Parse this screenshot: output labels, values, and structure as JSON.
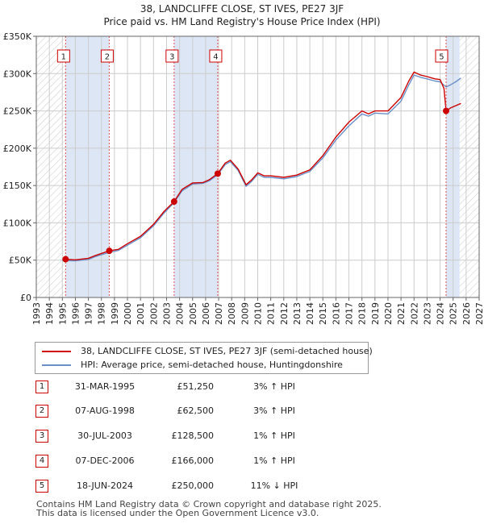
{
  "header": {
    "title": "38, LANDCLIFFE CLOSE, ST IVES, PE27 3JF",
    "subtitle": "Price paid vs. HM Land Registry's House Price Index (HPI)"
  },
  "colors": {
    "property": "#cc0000",
    "hpi": "#6a8fc8",
    "shade": "#dde6f5",
    "grid": "#cccccc",
    "marker_line": "#e05050"
  },
  "chart_data": {
    "type": "line",
    "xlim": [
      1993,
      2027
    ],
    "ylim": [
      0,
      350000
    ],
    "x_ticks": [
      "1993",
      "1994",
      "1995",
      "1996",
      "1997",
      "1998",
      "1999",
      "2000",
      "2001",
      "2002",
      "2003",
      "2004",
      "2005",
      "2006",
      "2007",
      "2008",
      "2009",
      "2010",
      "2011",
      "2012",
      "2013",
      "2014",
      "2015",
      "2016",
      "2017",
      "2018",
      "2019",
      "2020",
      "2021",
      "2022",
      "2023",
      "2024",
      "2025",
      "2026",
      "2027"
    ],
    "y_ticks": [
      {
        "value": 0,
        "label": "£0"
      },
      {
        "value": 50000,
        "label": "£50K"
      },
      {
        "value": 100000,
        "label": "£100K"
      },
      {
        "value": 150000,
        "label": "£150K"
      },
      {
        "value": 200000,
        "label": "£200K"
      },
      {
        "value": 250000,
        "label": "£250K"
      },
      {
        "value": 300000,
        "label": "£300K"
      },
      {
        "value": 350000,
        "label": "£350K"
      }
    ],
    "shaded_ranges": [
      [
        1995.25,
        1998.6
      ],
      [
        2003.58,
        2006.93
      ],
      [
        2024.46,
        2025.5
      ]
    ],
    "hatched_ranges": [
      [
        1993,
        1995.25
      ],
      [
        2025.5,
        2027
      ]
    ],
    "series": [
      {
        "name": "38, LANDCLIFFE CLOSE, ST IVES, PE27 3JF (semi-detached house)",
        "color": "#cc0000",
        "points": [
          [
            1995.25,
            51250
          ],
          [
            1996.0,
            50500
          ],
          [
            1997.0,
            52500
          ],
          [
            1997.5,
            56000
          ],
          [
            1998.6,
            62500
          ],
          [
            1999.3,
            64500
          ],
          [
            2000.0,
            72000
          ],
          [
            2001.0,
            82000
          ],
          [
            2002.0,
            98000
          ],
          [
            2002.8,
            115000
          ],
          [
            2003.58,
            128500
          ],
          [
            2004.2,
            145000
          ],
          [
            2005.0,
            153500
          ],
          [
            2005.8,
            154000
          ],
          [
            2006.3,
            158000
          ],
          [
            2006.93,
            166000
          ],
          [
            2007.5,
            180000
          ],
          [
            2007.9,
            184000
          ],
          [
            2008.5,
            172000
          ],
          [
            2009.1,
            151000
          ],
          [
            2009.5,
            157000
          ],
          [
            2010.0,
            167000
          ],
          [
            2010.5,
            163000
          ],
          [
            2011.0,
            163000
          ],
          [
            2012.0,
            161000
          ],
          [
            2013.0,
            164000
          ],
          [
            2014.0,
            171000
          ],
          [
            2015.0,
            190000
          ],
          [
            2016.0,
            215000
          ],
          [
            2017.0,
            235000
          ],
          [
            2018.0,
            250000
          ],
          [
            2018.5,
            246000
          ],
          [
            2019.0,
            250000
          ],
          [
            2020.0,
            250000
          ],
          [
            2021.0,
            268000
          ],
          [
            2021.6,
            290000
          ],
          [
            2022.0,
            302000
          ],
          [
            2022.5,
            298000
          ],
          [
            2023.0,
            296000
          ],
          [
            2023.6,
            293000
          ],
          [
            2024.0,
            292000
          ],
          [
            2024.3,
            280000
          ],
          [
            2024.46,
            250000
          ],
          [
            2024.8,
            254000
          ],
          [
            2025.2,
            257000
          ],
          [
            2025.6,
            260000
          ]
        ]
      },
      {
        "name": "HPI: Average price, semi-detached house, Huntingdonshire",
        "color": "#6a8fc8",
        "points": [
          [
            1995.0,
            49500
          ],
          [
            1996.0,
            49000
          ],
          [
            1997.0,
            51000
          ],
          [
            1997.5,
            54500
          ],
          [
            1998.6,
            60500
          ],
          [
            1999.3,
            63000
          ],
          [
            2000.0,
            70000
          ],
          [
            2001.0,
            80000
          ],
          [
            2002.0,
            96000
          ],
          [
            2002.8,
            113000
          ],
          [
            2003.58,
            127000
          ],
          [
            2004.2,
            143000
          ],
          [
            2005.0,
            152000
          ],
          [
            2005.8,
            153000
          ],
          [
            2006.3,
            156500
          ],
          [
            2006.93,
            164500
          ],
          [
            2007.5,
            178000
          ],
          [
            2007.9,
            182000
          ],
          [
            2008.5,
            170000
          ],
          [
            2009.1,
            149000
          ],
          [
            2009.5,
            155000
          ],
          [
            2010.0,
            165000
          ],
          [
            2010.5,
            161000
          ],
          [
            2011.0,
            161000
          ],
          [
            2012.0,
            159000
          ],
          [
            2013.0,
            162000
          ],
          [
            2014.0,
            169000
          ],
          [
            2015.0,
            187000
          ],
          [
            2016.0,
            211000
          ],
          [
            2017.0,
            230000
          ],
          [
            2018.0,
            246000
          ],
          [
            2018.5,
            243000
          ],
          [
            2019.0,
            247000
          ],
          [
            2020.0,
            246000
          ],
          [
            2021.0,
            263000
          ],
          [
            2021.6,
            285000
          ],
          [
            2022.0,
            298000
          ],
          [
            2022.5,
            295000
          ],
          [
            2023.0,
            293000
          ],
          [
            2023.6,
            290000
          ],
          [
            2024.0,
            289000
          ],
          [
            2024.46,
            282000
          ],
          [
            2024.8,
            285000
          ],
          [
            2025.2,
            289000
          ],
          [
            2025.6,
            294000
          ]
        ]
      }
    ],
    "sales": [
      {
        "label": "1",
        "year": 1995.25,
        "price": 51250
      },
      {
        "label": "2",
        "year": 1998.6,
        "price": 62500
      },
      {
        "label": "3",
        "year": 2003.58,
        "price": 128500
      },
      {
        "label": "4",
        "year": 2006.93,
        "price": 166000
      },
      {
        "label": "5",
        "year": 2024.46,
        "price": 250000
      }
    ]
  },
  "legend": {
    "property_label": "38, LANDCLIFFE CLOSE, ST IVES, PE27 3JF (semi-detached house)",
    "hpi_label": "HPI: Average price, semi-detached house, Huntingdonshire"
  },
  "sales_table": [
    {
      "num": "1",
      "date": "31-MAR-1995",
      "price": "£51,250",
      "hpi": "3% ↑ HPI"
    },
    {
      "num": "2",
      "date": "07-AUG-1998",
      "price": "£62,500",
      "hpi": "3% ↑ HPI"
    },
    {
      "num": "3",
      "date": "30-JUL-2003",
      "price": "£128,500",
      "hpi": "1% ↑ HPI"
    },
    {
      "num": "4",
      "date": "07-DEC-2006",
      "price": "£166,000",
      "hpi": "1% ↑ HPI"
    },
    {
      "num": "5",
      "date": "18-JUN-2024",
      "price": "£250,000",
      "hpi": "11% ↓ HPI"
    }
  ],
  "footer": {
    "line1": "Contains HM Land Registry data © Crown copyright and database right 2025.",
    "line2": "This data is licensed under the Open Government Licence v3.0."
  }
}
